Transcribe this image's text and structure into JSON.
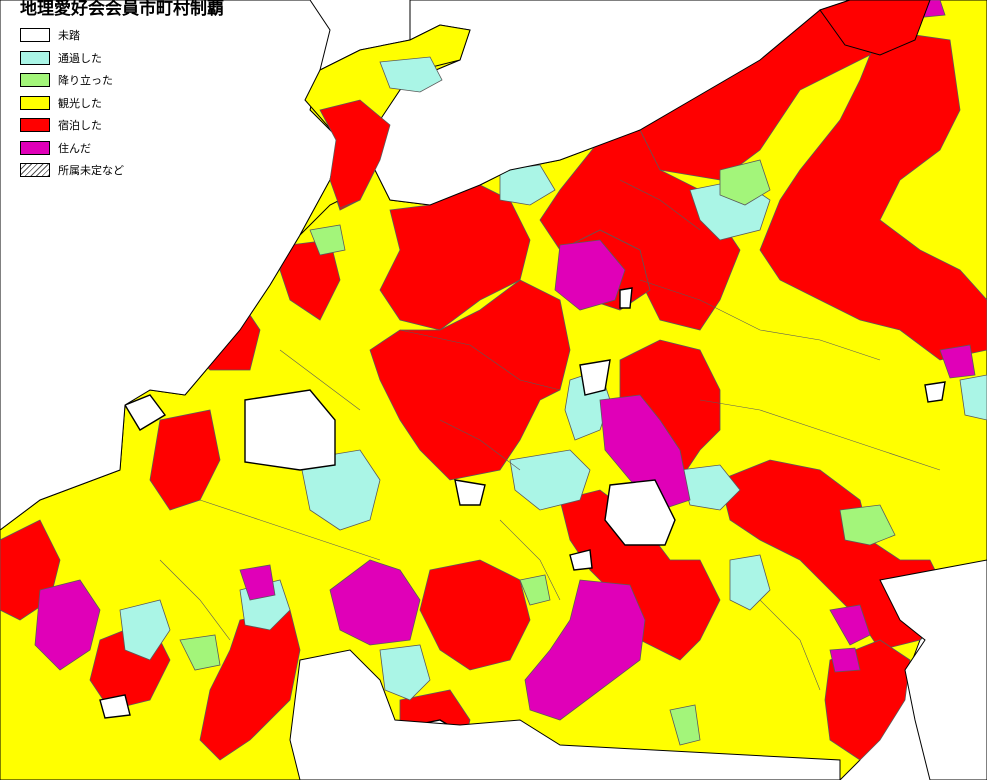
{
  "title": "地理愛好会会員市町村制覇",
  "colors": {
    "background": "#ffffff",
    "sea": "#ffffff",
    "border": "#5a5a5a",
    "coast": "#000000"
  },
  "legend": [
    {
      "key": "untrodden",
      "label": "未踏",
      "color": "#ffffff"
    },
    {
      "key": "passed",
      "label": "通過した",
      "color": "#aaf5e6"
    },
    {
      "key": "landed",
      "label": "降り立った",
      "color": "#a3f57a"
    },
    {
      "key": "sightseeing",
      "label": "観光した",
      "color": "#ffff00"
    },
    {
      "key": "stayed",
      "label": "宿泊した",
      "color": "#ff0000"
    },
    {
      "key": "lived",
      "label": "住んだ",
      "color": "#e000b8"
    },
    {
      "key": "undetermined",
      "label": "所属未定など",
      "color": "hatched"
    }
  ]
}
